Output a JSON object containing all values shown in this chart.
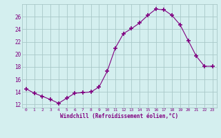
{
  "x": [
    0,
    1,
    2,
    3,
    4,
    5,
    6,
    7,
    8,
    9,
    10,
    11,
    12,
    13,
    14,
    15,
    16,
    17,
    18,
    19,
    20,
    21,
    22,
    23
  ],
  "y": [
    14.5,
    13.8,
    13.3,
    12.8,
    12.2,
    13.0,
    13.8,
    13.9,
    14.0,
    14.8,
    17.3,
    21.0,
    23.3,
    24.1,
    25.0,
    26.2,
    27.2,
    27.1,
    26.2,
    24.7,
    22.2,
    19.7,
    18.1,
    18.1
  ],
  "line_color": "#800080",
  "marker": "+",
  "marker_size": 4,
  "bg_color": "#d4efef",
  "grid_color": "#a8c8c8",
  "xlabel": "Windchill (Refroidissement éolien,°C)",
  "tick_color": "#800080",
  "ylim": [
    11.5,
    28.0
  ],
  "yticks": [
    12,
    14,
    16,
    18,
    20,
    22,
    24,
    26
  ],
  "xticks": [
    0,
    1,
    2,
    3,
    4,
    5,
    6,
    7,
    8,
    9,
    10,
    11,
    12,
    13,
    14,
    15,
    16,
    17,
    18,
    19,
    20,
    21,
    22,
    23
  ],
  "xlim": [
    -0.5,
    23.5
  ]
}
